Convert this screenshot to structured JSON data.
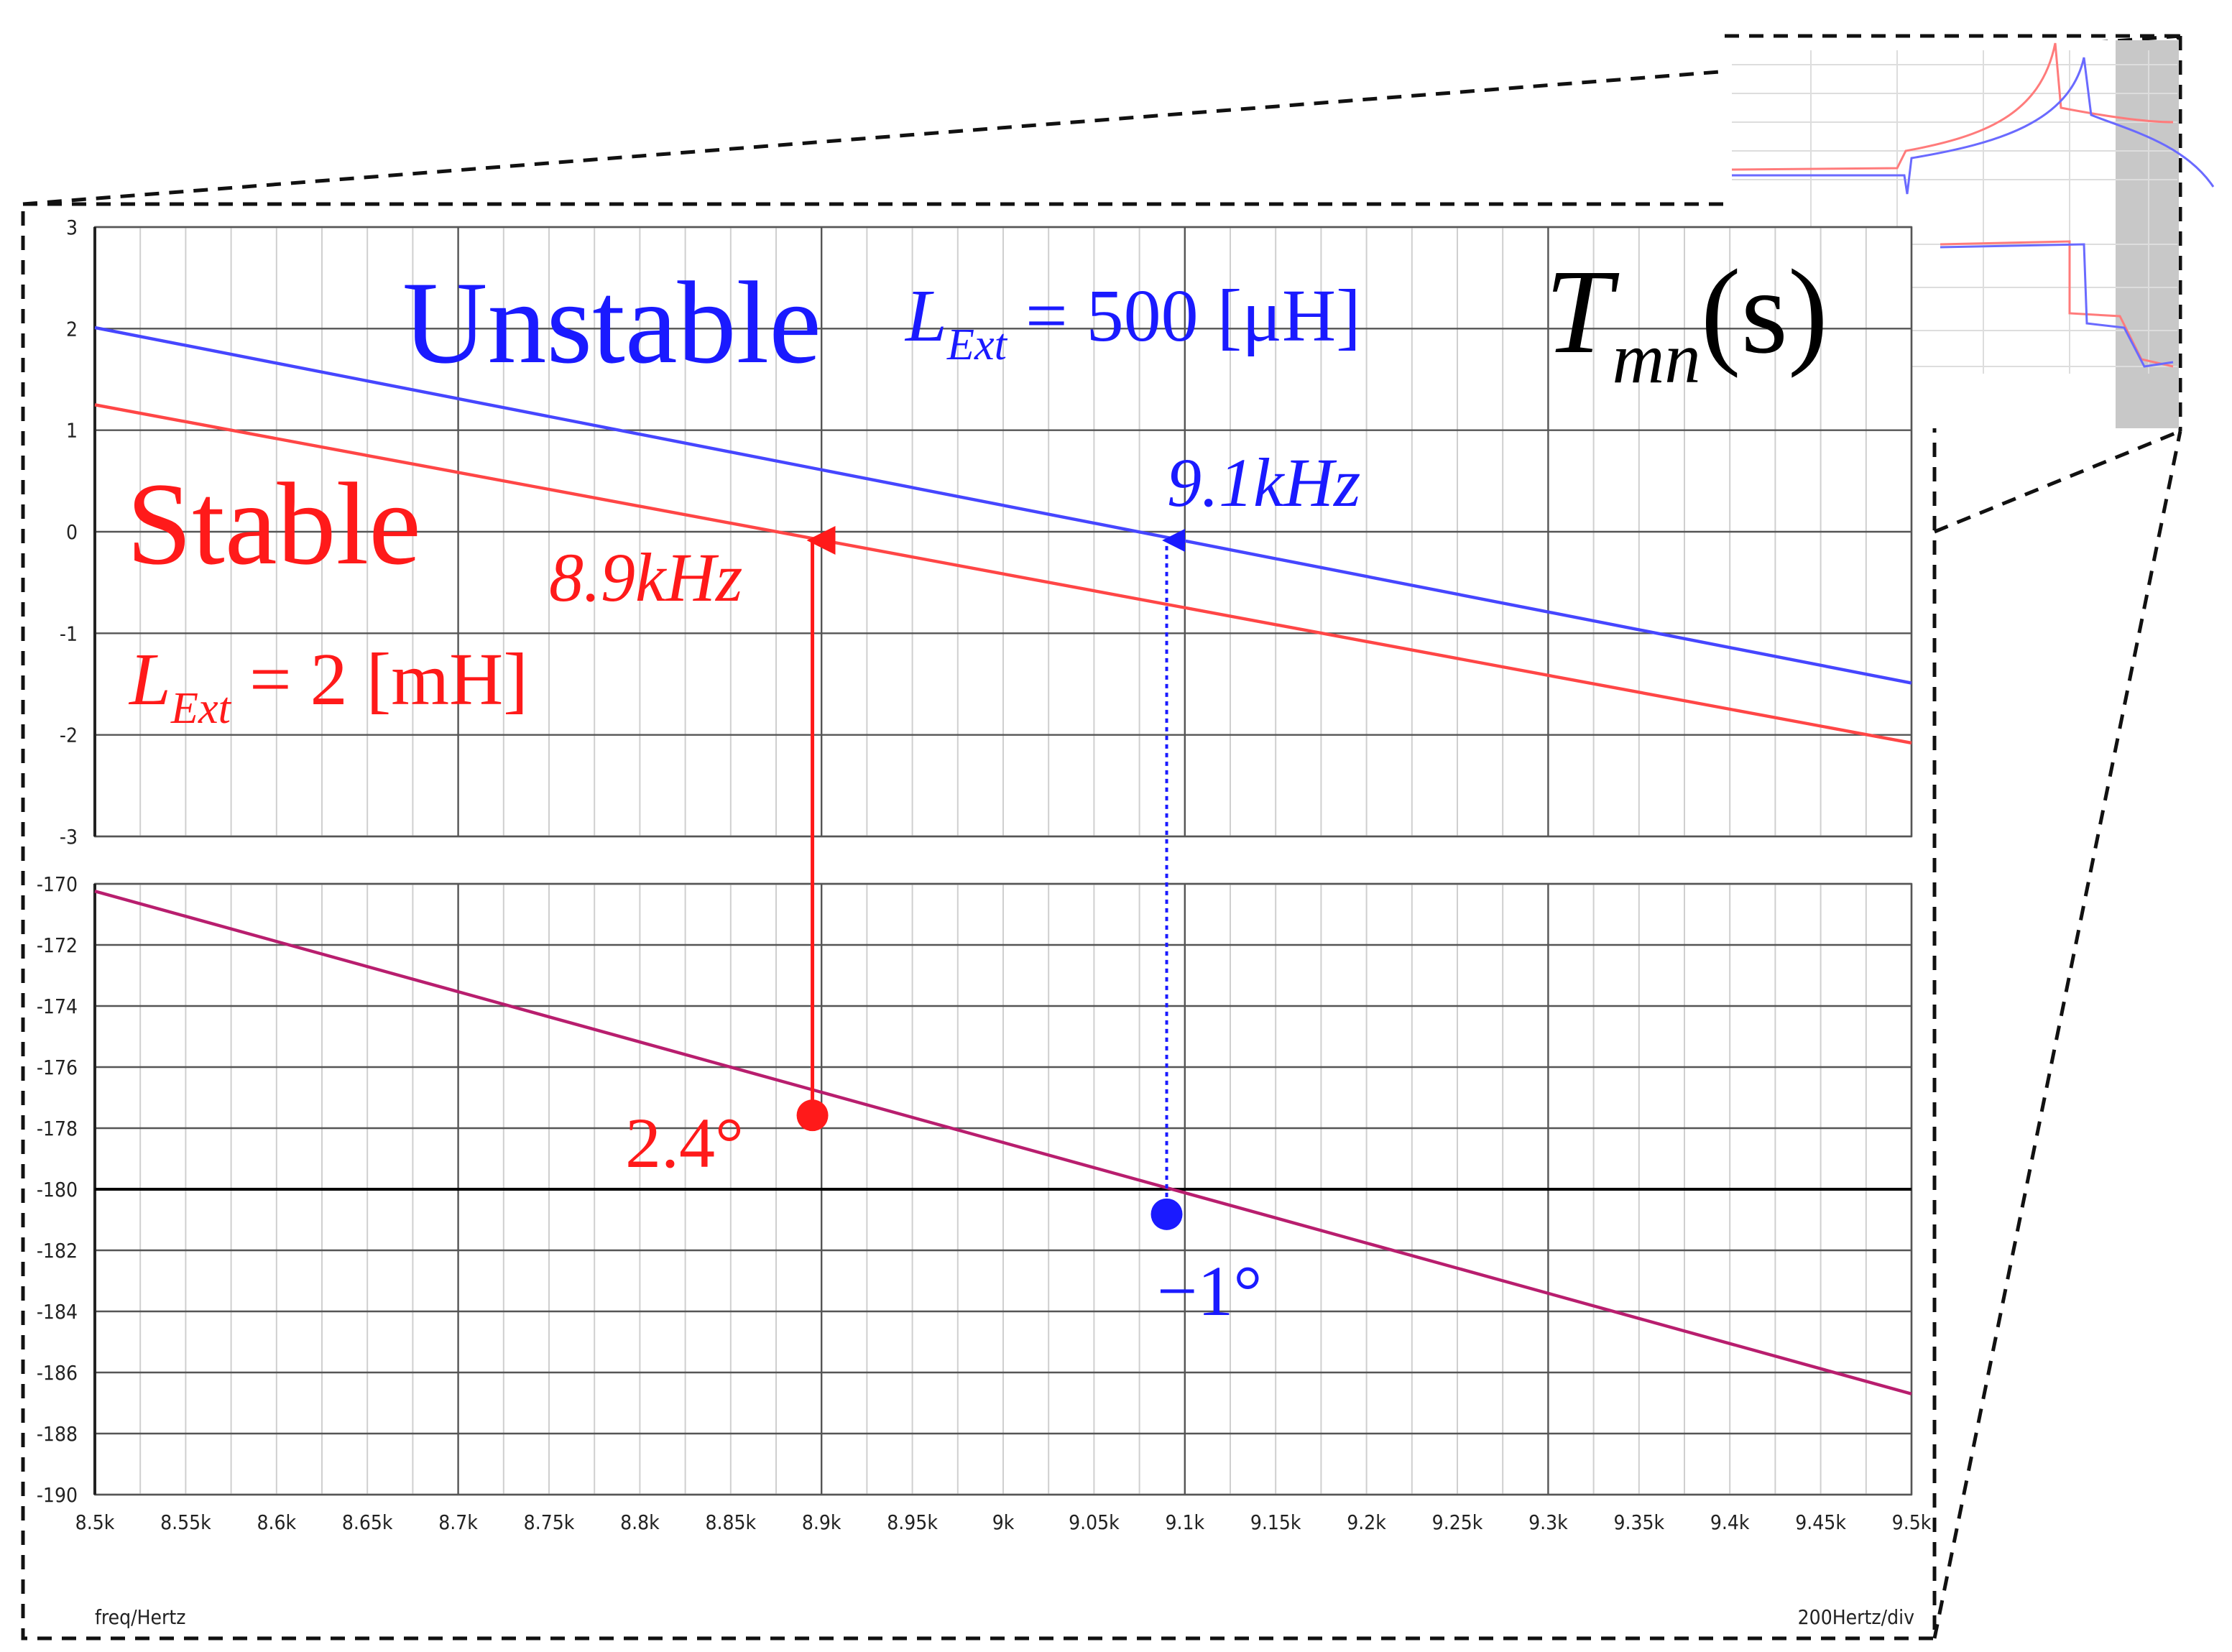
{
  "chart_data": [
    {
      "type": "line",
      "xlim": [
        8500,
        9500
      ],
      "x": [
        8500,
        9500
      ],
      "ylim": [
        -3,
        3
      ],
      "yticks": [
        -3,
        -2,
        -1,
        0,
        1,
        2,
        3
      ],
      "grid": true,
      "series": [
        {
          "color": "#4646ff",
          "values": [
            2.01,
            -1.49
          ]
        },
        {
          "color": "#ff4646",
          "values": [
            1.25,
            -2.08
          ]
        }
      ],
      "annotations": [
        {
          "text": "Unstable",
          "color": "#1a1aff"
        },
        {
          "main": "L",
          "sub": "Ext",
          "rest": " = 500 [μH]",
          "color": "#1a1aff"
        },
        {
          "main": "T",
          "sub": "mn",
          "rest": "(s)",
          "color": "#000000"
        },
        {
          "text": "Stable",
          "color": "#ff1a1a"
        },
        {
          "text": "9.1kHz",
          "color": "#1a1aff"
        },
        {
          "text": "8.9kHz",
          "color": "#ff1a1a"
        },
        {
          "main": "L",
          "sub": "Ext",
          "rest": " = 2 [mH]",
          "color": "#ff1a1a"
        }
      ]
    },
    {
      "type": "line",
      "xlim": [
        8500,
        9500
      ],
      "x": [
        8500,
        9500
      ],
      "xticks": [
        {
          "value": 8500,
          "label": "8.5k"
        },
        {
          "value": 8550,
          "label": "8.55k"
        },
        {
          "value": 8600,
          "label": "8.6k"
        },
        {
          "value": 8650,
          "label": "8.65k"
        },
        {
          "value": 8700,
          "label": "8.7k"
        },
        {
          "value": 8750,
          "label": "8.75k"
        },
        {
          "value": 8800,
          "label": "8.8k"
        },
        {
          "value": 8850,
          "label": "8.85k"
        },
        {
          "value": 8900,
          "label": "8.9k"
        },
        {
          "value": 8950,
          "label": "8.95k"
        },
        {
          "value": 9000,
          "label": "9k"
        },
        {
          "value": 9050,
          "label": "9.05k"
        },
        {
          "value": 9100,
          "label": "9.1k"
        },
        {
          "value": 9150,
          "label": "9.15k"
        },
        {
          "value": 9200,
          "label": "9.2k"
        },
        {
          "value": 9250,
          "label": "9.25k"
        },
        {
          "value": 9300,
          "label": "9.3k"
        },
        {
          "value": 9350,
          "label": "9.35k"
        },
        {
          "value": 9400,
          "label": "9.4k"
        },
        {
          "value": 9450,
          "label": "9.45k"
        },
        {
          "value": 9500,
          "label": "9.5k"
        }
      ],
      "ylim": [
        -190,
        -170
      ],
      "yticks": [
        -190,
        -188,
        -186,
        -184,
        -182,
        -180,
        -178,
        -176,
        -174,
        -172,
        -170
      ],
      "grid": true,
      "hline": -180,
      "series": [
        {
          "color": "#b81e6e",
          "values": [
            -170.24,
            -186.7
          ]
        }
      ],
      "points": [
        {
          "x": 8895,
          "y": -177.58,
          "color": "#ff1a1a",
          "arrow": "solid"
        },
        {
          "x": 9090,
          "y": -180.82,
          "color": "#1a1aff",
          "arrow": "dotted"
        }
      ],
      "annotations": [
        {
          "text": "2.4°",
          "color": "#ff1a1a"
        },
        {
          "text": "−1°",
          "color": "#1a1aff"
        }
      ],
      "xlabel": "freq/Hertz",
      "note": "200Hertz/div"
    }
  ]
}
